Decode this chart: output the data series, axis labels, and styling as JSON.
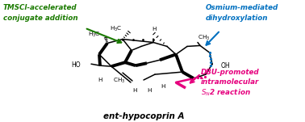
{
  "title": "ent-hypocoprin A",
  "green_text": [
    "TMSCl-accelerated",
    "conjugate addition"
  ],
  "blue_text": [
    "Osmium-mediated",
    "dihydroxylation"
  ],
  "pink_text": [
    "DBU-promoted",
    "intramolecular",
    "S_N2 reaction"
  ],
  "green_color": "#1a7a00",
  "blue_color": "#0070c0",
  "pink_color": "#e6007e",
  "black_color": "#000000",
  "figure_size": [
    3.78,
    1.51
  ],
  "dpi": 100
}
